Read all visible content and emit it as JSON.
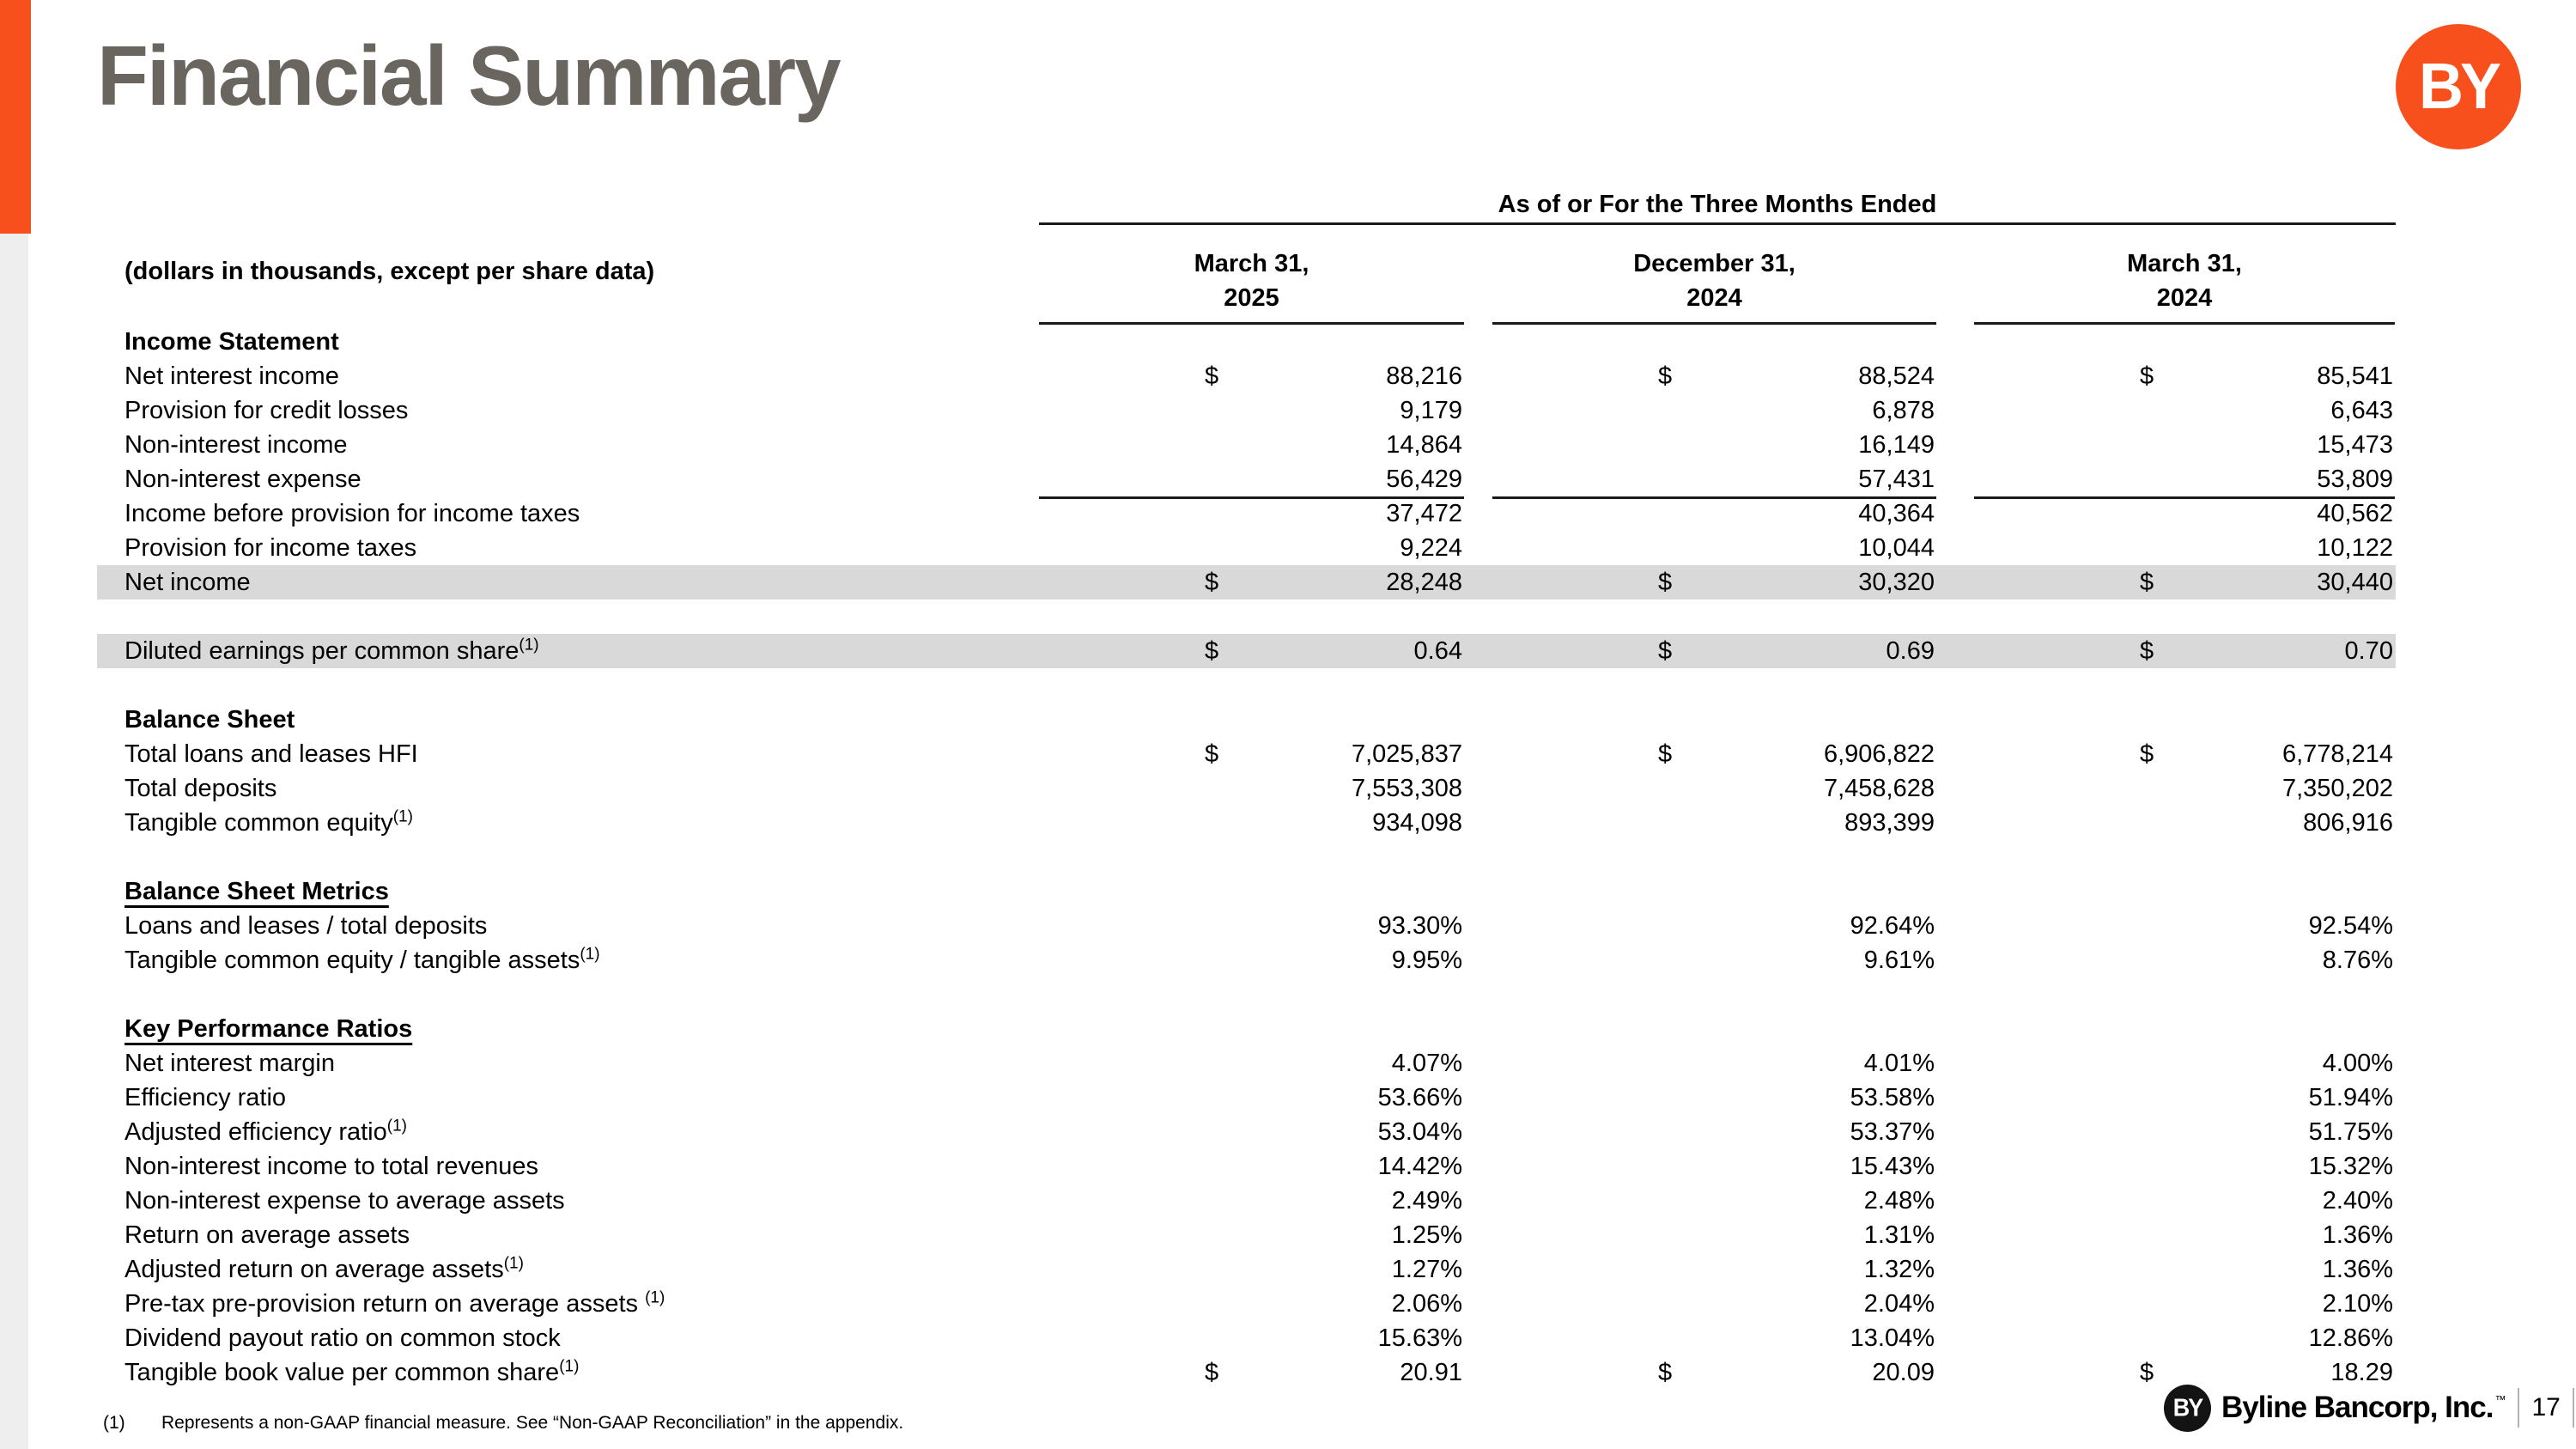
{
  "page": {
    "title": "Financial Summary",
    "logo_text": "BY",
    "page_number": "17",
    "footer_company": "Byline Bancorp, Inc.",
    "footer_tm": "™",
    "footnote_marker": "(1)",
    "footnote_text": "Represents a non-GAAP financial measure.  See “Non-GAAP Reconciliation” in the appendix."
  },
  "colors": {
    "accent_orange": "#F8501D",
    "title_gray": "#6B6560",
    "row_highlight": "#D9D9D9",
    "side_stripe": "#EFEEEE",
    "footer_logo_black": "#131313"
  },
  "table": {
    "caption": "(dollars in thousands, except per share data)",
    "header_group": "As of or For the Three Months Ended",
    "currency_symbol": "$",
    "columns": [
      {
        "line1": "March 31,",
        "line2": "2025"
      },
      {
        "line1": "December 31,",
        "line2": "2024"
      },
      {
        "line1": "March 31,",
        "line2": "2024"
      }
    ],
    "rows": [
      {
        "type": "section",
        "label": "Income Statement"
      },
      {
        "type": "data",
        "label": "Net interest income",
        "dollar": true,
        "values": [
          "88,216",
          "88,524",
          "85,541"
        ]
      },
      {
        "type": "data",
        "label": "Provision for credit losses",
        "values": [
          "9,179",
          "6,878",
          "6,643"
        ]
      },
      {
        "type": "data",
        "label": "Non-interest income",
        "values": [
          "14,864",
          "16,149",
          "15,473"
        ]
      },
      {
        "type": "data",
        "label": "Non-interest expense",
        "sumline": true,
        "values": [
          "56,429",
          "57,431",
          "53,809"
        ]
      },
      {
        "type": "data",
        "label": "Income before provision for income taxes",
        "values": [
          "37,472",
          "40,364",
          "40,562"
        ]
      },
      {
        "type": "data",
        "label": "Provision for income taxes",
        "sumline": true,
        "values": [
          "9,224",
          "10,044",
          "10,122"
        ]
      },
      {
        "type": "data",
        "label": "Net income",
        "dollar": true,
        "highlight": true,
        "values": [
          "28,248",
          "30,320",
          "30,440"
        ]
      },
      {
        "type": "gap"
      },
      {
        "type": "data",
        "label": "Diluted earnings per common share",
        "sup": "(1)",
        "dollar": true,
        "highlight": true,
        "values": [
          "0.64",
          "0.69",
          "0.70"
        ]
      },
      {
        "type": "gap"
      },
      {
        "type": "section",
        "label": "Balance Sheet"
      },
      {
        "type": "data",
        "label": "Total loans and leases HFI",
        "dollar": true,
        "values": [
          "7,025,837",
          "6,906,822",
          "6,778,214"
        ]
      },
      {
        "type": "data",
        "label": "Total deposits",
        "values": [
          "7,553,308",
          "7,458,628",
          "7,350,202"
        ]
      },
      {
        "type": "data",
        "label": "Tangible common equity",
        "sup": "(1)",
        "values": [
          "934,098",
          "893,399",
          "806,916"
        ]
      },
      {
        "type": "gap"
      },
      {
        "type": "section",
        "label": "Balance Sheet Metrics",
        "underline": true
      },
      {
        "type": "data",
        "label": "Loans and leases / total deposits",
        "values": [
          "93.30%",
          "92.64%",
          "92.54%"
        ]
      },
      {
        "type": "data",
        "label": "Tangible common equity / tangible assets",
        "sup": "(1)",
        "values": [
          "9.95%",
          "9.61%",
          "8.76%"
        ]
      },
      {
        "type": "gap"
      },
      {
        "type": "section",
        "label": "Key Performance Ratios",
        "underline": true
      },
      {
        "type": "data",
        "label": "Net interest margin",
        "values": [
          "4.07%",
          "4.01%",
          "4.00%"
        ]
      },
      {
        "type": "data",
        "label": "Efficiency ratio",
        "values": [
          "53.66%",
          "53.58%",
          "51.94%"
        ]
      },
      {
        "type": "data",
        "label": "Adjusted efficiency ratio",
        "sup": "(1)",
        "values": [
          "53.04%",
          "53.37%",
          "51.75%"
        ]
      },
      {
        "type": "data",
        "label": "Non-interest income to total revenues",
        "values": [
          "14.42%",
          "15.43%",
          "15.32%"
        ]
      },
      {
        "type": "data",
        "label": "Non-interest expense to average assets",
        "values": [
          "2.49%",
          "2.48%",
          "2.40%"
        ]
      },
      {
        "type": "data",
        "label": "Return on average assets",
        "values": [
          "1.25%",
          "1.31%",
          "1.36%"
        ]
      },
      {
        "type": "data",
        "label": "Adjusted return on average assets",
        "sup": "(1)",
        "values": [
          "1.27%",
          "1.32%",
          "1.36%"
        ]
      },
      {
        "type": "data",
        "label": "Pre-tax pre-provision return on average assets ",
        "sup": "(1)",
        "values": [
          "2.06%",
          "2.04%",
          "2.10%"
        ]
      },
      {
        "type": "data",
        "label": "Dividend payout ratio on common stock",
        "values": [
          "15.63%",
          "13.04%",
          "12.86%"
        ]
      },
      {
        "type": "data",
        "label": "Tangible book value per common share",
        "sup": "(1)",
        "dollar": true,
        "values": [
          "20.91",
          "20.09",
          "18.29"
        ]
      }
    ]
  }
}
